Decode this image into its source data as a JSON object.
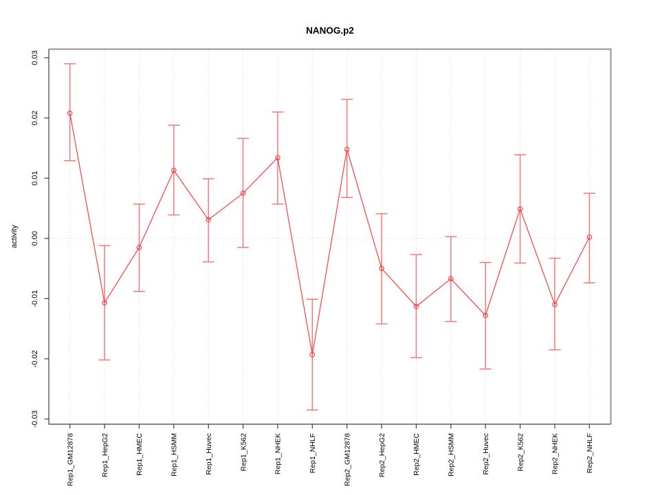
{
  "chart_data": {
    "type": "line",
    "title": "NANOG.p2",
    "xlabel": "",
    "ylabel": "activity",
    "ylim": [
      -0.03,
      0.03
    ],
    "yticks": [
      "-0.03",
      "-0.02",
      "-0.01",
      "0.00",
      "0.01",
      "0.02",
      "0.03"
    ],
    "legend": "none",
    "grid": {
      "vertical_per_category": true,
      "horizontal_zero_line": true,
      "style": "dotted"
    },
    "categories": [
      "Rep1_GM12878",
      "Rep1_HepG2",
      "Rep1_HMEC",
      "Rep1_HSMM",
      "Rep1_Huvec",
      "Rep1_K562",
      "Rep1_NHEK",
      "Rep1_NHLF",
      "Rep2_GM12878",
      "Rep2_HepG2",
      "Rep2_HMEC",
      "Rep2_HSMM",
      "Rep2_Huvec",
      "Rep2_K562",
      "Rep2_NHEK",
      "Rep2_NHLF"
    ],
    "series": [
      {
        "name": "activity",
        "marker": "open-circle",
        "values": [
          0.0208,
          -0.0107,
          -0.0015,
          0.0113,
          0.0031,
          0.0075,
          0.0134,
          -0.0193,
          0.0148,
          -0.005,
          -0.0113,
          -0.0067,
          -0.0128,
          0.0049,
          -0.011,
          0.0002
        ],
        "error_high": [
          0.029,
          -0.0012,
          0.0057,
          0.0188,
          0.0099,
          0.0166,
          0.021,
          -0.0101,
          0.0231,
          0.0041,
          -0.0027,
          0.0003,
          -0.004,
          0.0139,
          -0.0033,
          0.0075
        ],
        "error_low": [
          0.0129,
          -0.0202,
          -0.0088,
          0.0039,
          -0.0039,
          -0.0015,
          0.0057,
          -0.0285,
          0.0068,
          -0.0142,
          -0.0198,
          -0.0138,
          -0.0217,
          -0.0041,
          -0.0185,
          -0.0074
        ]
      }
    ],
    "colors": {
      "line": "#f84444",
      "point": "#f84444",
      "errorbar": "#f57777",
      "grid": "#d2d2d2",
      "box": "#9d9d9d",
      "axis": "#3c3c3c",
      "text": "#000000"
    }
  }
}
